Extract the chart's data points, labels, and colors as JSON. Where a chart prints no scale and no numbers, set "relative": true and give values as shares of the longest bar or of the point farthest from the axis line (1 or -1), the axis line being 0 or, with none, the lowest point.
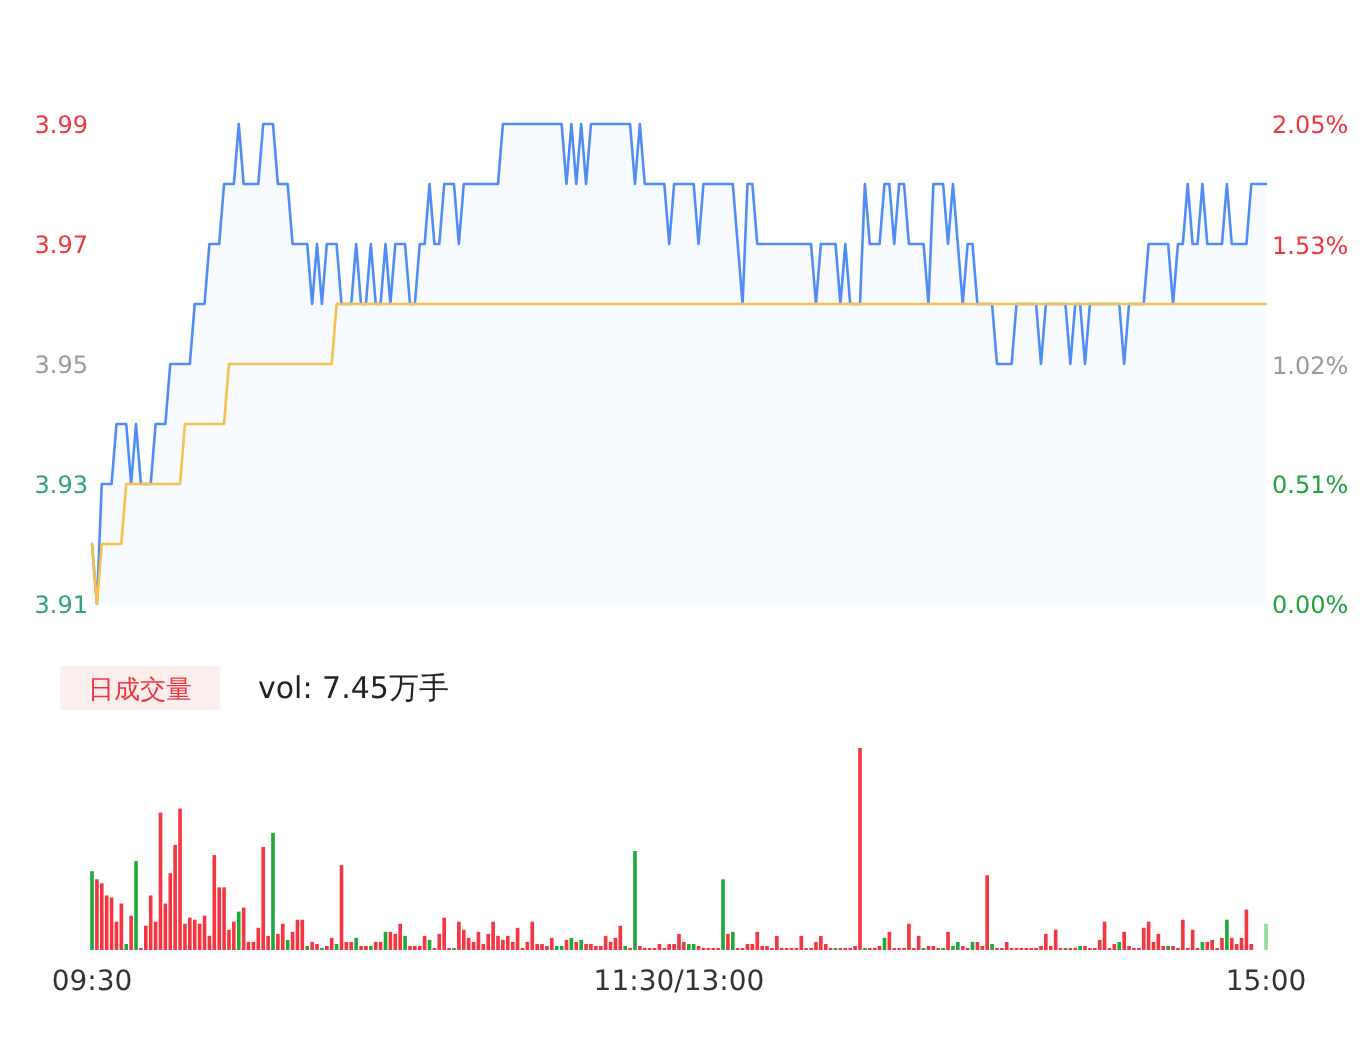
{
  "chart_data": [
    {
      "type": "area",
      "ylim": [
        3.91,
        3.99
      ],
      "yticks": [
        3.91,
        3.93,
        3.95,
        3.97,
        3.99
      ],
      "y2lim": [
        0,
        2.05
      ],
      "y2ticks": [
        {
          "value": 0,
          "label": "0.00%"
        },
        {
          "value": 0.51,
          "label": "0.51%"
        },
        {
          "value": 1.02,
          "label": "1.02%"
        },
        {
          "value": 1.53,
          "label": "1.53%"
        },
        {
          "value": 2.05,
          "label": "2.05%"
        }
      ],
      "tick_labels": "y",
      "categories": [
        null,
        null,
        null,
        null,
        null,
        null,
        null,
        null,
        null,
        null,
        null,
        null,
        null,
        null,
        null,
        null,
        null,
        null,
        null,
        null,
        null,
        null,
        null,
        null,
        null,
        null,
        null,
        null,
        null,
        null,
        null,
        null,
        null,
        null,
        null,
        null,
        null,
        null,
        null,
        null,
        null,
        null,
        null,
        null,
        null,
        null,
        null,
        null,
        null,
        null,
        null,
        null,
        null,
        null,
        null,
        null,
        null,
        null,
        null,
        null,
        null,
        null,
        null,
        null,
        null,
        null,
        null,
        null,
        null,
        null,
        null,
        null,
        null,
        null,
        null,
        null,
        null,
        null,
        null,
        null,
        null,
        null,
        null,
        null,
        null,
        null,
        null,
        null,
        null,
        null,
        null,
        null,
        null,
        null,
        null,
        null,
        null,
        null,
        null,
        null,
        null,
        null,
        null,
        null,
        null,
        null,
        null,
        null,
        null,
        null,
        null,
        null,
        null,
        null,
        null,
        null,
        null,
        null,
        null,
        null,
        null,
        null,
        null,
        null,
        null,
        null,
        null,
        null,
        null,
        null,
        null,
        null,
        null,
        null,
        null,
        null,
        null,
        null,
        null,
        null,
        null,
        null,
        null,
        null,
        null,
        null,
        null,
        null,
        null,
        null,
        null,
        null,
        null,
        null,
        null,
        null,
        null,
        null,
        null,
        null,
        null,
        null,
        null,
        null,
        null,
        null,
        null,
        null,
        null,
        null,
        null,
        null,
        null,
        null,
        null,
        null,
        null,
        null,
        null,
        null,
        null,
        null,
        null,
        null,
        null,
        null,
        null,
        null,
        null,
        null,
        null,
        null,
        null,
        null,
        null,
        null,
        null,
        null,
        null,
        null,
        null,
        null,
        null,
        null,
        null,
        null,
        null,
        null,
        null,
        null,
        null,
        null,
        null,
        null,
        null,
        null,
        null,
        null,
        null,
        null,
        null,
        null,
        null,
        null,
        null,
        null,
        null,
        null,
        null,
        null,
        null,
        null,
        null,
        null,
        null,
        null,
        null,
        null,
        null,
        null,
        null
      ],
      "series": [
        {
          "color": "#4f8cf7",
          "values": [
            3.92,
            3.91,
            3.93,
            3.93,
            3.93,
            3.94,
            3.94,
            3.94,
            3.93,
            3.94,
            3.93,
            3.93,
            3.93,
            3.94,
            3.94,
            3.94,
            3.95,
            3.95,
            3.95,
            3.95,
            3.95,
            3.96,
            3.96,
            3.96,
            3.97,
            3.97,
            3.97,
            3.98,
            3.98,
            3.98,
            3.99,
            3.98,
            3.98,
            3.98,
            3.98,
            3.99,
            3.99,
            3.99,
            3.98,
            3.98,
            3.98,
            3.97,
            3.97,
            3.97,
            3.97,
            3.96,
            3.97,
            3.96,
            3.97,
            3.97,
            3.97,
            3.96,
            3.96,
            3.96,
            3.97,
            3.96,
            3.96,
            3.97,
            3.96,
            3.96,
            3.97,
            3.96,
            3.97,
            3.97,
            3.97,
            3.96,
            3.96,
            3.97,
            3.97,
            3.98,
            3.97,
            3.97,
            3.98,
            3.98,
            3.98,
            3.97,
            3.98,
            3.98,
            3.98,
            3.98,
            3.98,
            3.98,
            3.98,
            3.98,
            3.99,
            3.99,
            3.99,
            3.99,
            3.99,
            3.99,
            3.99,
            3.99,
            3.99,
            3.99,
            3.99,
            3.99,
            3.99,
            3.98,
            3.99,
            3.98,
            3.99,
            3.98,
            3.99,
            3.99,
            3.99,
            3.99,
            3.99,
            3.99,
            3.99,
            3.99,
            3.99,
            3.98,
            3.99,
            3.98,
            3.98,
            3.98,
            3.98,
            3.98,
            3.97,
            3.98,
            3.98,
            3.98,
            3.98,
            3.98,
            3.97,
            3.98,
            3.98,
            3.98,
            3.98,
            3.98,
            3.98,
            3.98,
            3.97,
            3.96,
            3.98,
            3.98,
            3.97,
            3.97,
            3.97,
            3.97,
            3.97,
            3.97,
            3.97,
            3.97,
            3.97,
            3.97,
            3.97,
            3.97,
            3.96,
            3.97,
            3.97,
            3.97,
            3.97,
            3.96,
            3.97,
            3.96,
            3.96,
            3.96,
            3.98,
            3.97,
            3.97,
            3.97,
            3.98,
            3.98,
            3.97,
            3.98,
            3.98,
            3.97,
            3.97,
            3.97,
            3.97,
            3.96,
            3.98,
            3.98,
            3.98,
            3.97,
            3.98,
            3.97,
            3.96,
            3.97,
            3.97,
            3.96,
            3.96,
            3.96,
            3.96,
            3.95,
            3.95,
            3.95,
            3.95,
            3.96,
            3.96,
            3.96,
            3.96,
            3.96,
            3.95,
            3.96,
            3.96,
            3.96,
            3.96,
            3.96,
            3.95,
            3.96,
            3.96,
            3.95,
            3.96,
            3.96,
            3.96,
            3.96,
            3.96,
            3.96,
            3.96,
            3.95,
            3.96,
            3.96,
            3.96,
            3.96,
            3.97,
            3.97,
            3.97,
            3.97,
            3.97,
            3.96,
            3.97,
            3.97,
            3.98,
            3.97,
            3.97,
            3.98,
            3.97,
            3.97,
            3.97,
            3.97,
            3.98,
            3.97,
            3.97,
            3.97,
            3.97,
            3.98,
            3.98,
            3.98,
            3.98
          ]
        },
        {
          "type": "line",
          "color": "#f7c14b",
          "values": [
            3.92,
            3.91,
            3.92,
            3.92,
            3.92,
            3.92,
            3.92,
            3.93,
            3.93,
            3.93,
            3.93,
            3.93,
            3.93,
            3.93,
            3.93,
            3.93,
            3.93,
            3.93,
            3.93,
            3.94,
            3.94,
            3.94,
            3.94,
            3.94,
            3.94,
            3.94,
            3.94,
            3.94,
            3.95,
            3.95,
            3.95,
            3.95,
            3.95,
            3.95,
            3.95,
            3.95,
            3.95,
            3.95,
            3.95,
            3.95,
            3.95,
            3.95,
            3.95,
            3.95,
            3.95,
            3.95,
            3.95,
            3.95,
            3.95,
            3.95,
            3.96,
            3.96,
            3.96,
            3.96,
            3.96,
            3.96,
            3.96,
            3.96,
            3.96,
            3.96,
            3.96,
            3.96,
            3.96,
            3.96,
            3.96,
            3.96,
            3.96,
            3.96,
            3.96,
            3.96,
            3.96,
            3.96,
            3.96,
            3.96,
            3.96,
            3.96,
            3.96,
            3.96,
            3.96,
            3.96,
            3.96,
            3.96,
            3.96,
            3.96,
            3.96,
            3.96,
            3.96,
            3.96,
            3.96,
            3.96,
            3.96,
            3.96,
            3.96,
            3.96,
            3.96,
            3.96,
            3.96,
            3.96,
            3.96,
            3.96,
            3.96,
            3.96,
            3.96,
            3.96,
            3.96,
            3.96,
            3.96,
            3.96,
            3.96,
            3.96,
            3.96,
            3.96,
            3.96,
            3.96,
            3.96,
            3.96,
            3.96,
            3.96,
            3.96,
            3.96,
            3.96,
            3.96,
            3.96,
            3.96,
            3.96,
            3.96,
            3.96,
            3.96,
            3.96,
            3.96,
            3.96,
            3.96,
            3.96,
            3.96,
            3.96,
            3.96,
            3.96,
            3.96,
            3.96,
            3.96,
            3.96,
            3.96,
            3.96,
            3.96,
            3.96,
            3.96,
            3.96,
            3.96,
            3.96,
            3.96,
            3.96,
            3.96,
            3.96,
            3.96,
            3.96,
            3.96,
            3.96,
            3.96,
            3.96,
            3.96,
            3.96,
            3.96,
            3.96,
            3.96,
            3.96,
            3.96,
            3.96,
            3.96,
            3.96,
            3.96,
            3.96,
            3.96,
            3.96,
            3.96,
            3.96,
            3.96,
            3.96,
            3.96,
            3.96,
            3.96,
            3.96,
            3.96,
            3.96,
            3.96,
            3.96,
            3.96,
            3.96,
            3.96,
            3.96,
            3.96,
            3.96,
            3.96,
            3.96,
            3.96,
            3.96,
            3.96,
            3.96,
            3.96,
            3.96,
            3.96,
            3.96,
            3.96,
            3.96,
            3.96,
            3.96,
            3.96,
            3.96,
            3.96,
            3.96,
            3.96,
            3.96,
            3.96,
            3.96,
            3.96,
            3.96,
            3.96,
            3.96,
            3.96,
            3.96,
            3.96,
            3.96,
            3.96,
            3.96,
            3.96,
            3.96,
            3.96,
            3.96,
            3.96,
            3.96,
            3.96,
            3.96,
            3.96,
            3.96,
            3.96,
            3.96,
            3.96,
            3.96,
            3.96,
            3.96,
            3.96,
            3.96
          ]
        }
      ]
    },
    {
      "type": "bar",
      "title": "日成交量",
      "subtitle": "vol: 7.45万手",
      "relative": true,
      "tick_labels": "x",
      "categories": [
        "09:30",
        null,
        null,
        null,
        null,
        null,
        null,
        null,
        null,
        null,
        null,
        null,
        null,
        null,
        null,
        null,
        null,
        null,
        null,
        null,
        null,
        null,
        null,
        null,
        null,
        null,
        null,
        null,
        null,
        null,
        null,
        null,
        null,
        null,
        null,
        null,
        null,
        null,
        null,
        null,
        null,
        null,
        null,
        null,
        null,
        null,
        null,
        null,
        null,
        null,
        null,
        null,
        null,
        null,
        null,
        null,
        null,
        null,
        null,
        null,
        null,
        null,
        null,
        null,
        null,
        null,
        null,
        null,
        null,
        null,
        null,
        null,
        null,
        null,
        null,
        null,
        null,
        null,
        null,
        null,
        null,
        null,
        null,
        null,
        null,
        null,
        null,
        null,
        null,
        null,
        null,
        null,
        null,
        null,
        null,
        null,
        null,
        null,
        null,
        null,
        null,
        null,
        null,
        null,
        null,
        null,
        null,
        null,
        null,
        null,
        null,
        null,
        null,
        null,
        null,
        null,
        null,
        null,
        null,
        null,
        "11:30/13:00",
        null,
        null,
        null,
        null,
        null,
        null,
        null,
        null,
        null,
        null,
        null,
        null,
        null,
        null,
        null,
        null,
        null,
        null,
        null,
        null,
        null,
        null,
        null,
        null,
        null,
        null,
        null,
        null,
        null,
        null,
        null,
        null,
        null,
        null,
        null,
        null,
        null,
        null,
        null,
        null,
        null,
        null,
        null,
        null,
        null,
        null,
        null,
        null,
        null,
        null,
        null,
        null,
        null,
        null,
        null,
        null,
        null,
        null,
        null,
        null,
        null,
        null,
        null,
        null,
        null,
        null,
        null,
        null,
        null,
        null,
        null,
        null,
        null,
        null,
        null,
        null,
        null,
        null,
        null,
        null,
        null,
        null,
        null,
        null,
        null,
        null,
        null,
        null,
        null,
        null,
        null,
        null,
        null,
        null,
        null,
        null,
        null,
        null,
        null,
        null,
        null,
        null,
        null,
        null,
        null,
        null,
        null,
        null,
        null,
        null,
        null,
        null,
        null,
        null,
        null,
        null,
        null,
        null,
        null,
        "15:00"
      ],
      "values": [
        0.39,
        0.35,
        0.33,
        0.27,
        0.26,
        0.14,
        0.23,
        0.03,
        0.17,
        0.44,
        0.01,
        0.12,
        0.27,
        0.14,
        0.68,
        0.23,
        0.38,
        0.52,
        0.7,
        0.13,
        0.16,
        0.15,
        0.13,
        0.17,
        0.07,
        0.47,
        0.31,
        0.31,
        0.1,
        0.14,
        0.19,
        0.21,
        0.04,
        0.04,
        0.11,
        0.51,
        0.07,
        0.58,
        0.08,
        0.13,
        0.05,
        0.09,
        0.15,
        0.15,
        0.02,
        0.04,
        0.03,
        0.01,
        0.02,
        0.06,
        0.03,
        0.42,
        0.04,
        0.04,
        0.06,
        0.02,
        0.02,
        0.02,
        0.04,
        0.04,
        0.09,
        0.09,
        0.08,
        0.13,
        0.07,
        0.02,
        0.02,
        0.02,
        0.07,
        0.05,
        0.01,
        0.08,
        0.16,
        0.01,
        0.01,
        0.14,
        0.1,
        0.06,
        0.04,
        0.09,
        0.03,
        0.08,
        0.14,
        0.07,
        0.05,
        0.07,
        0.04,
        0.11,
        0.01,
        0.04,
        0.14,
        0.03,
        0.03,
        0.02,
        0.06,
        0.02,
        0.02,
        0.05,
        0.06,
        0.04,
        0.05,
        0.03,
        0.03,
        0.02,
        0.02,
        0.07,
        0.04,
        0.06,
        0.12,
        0.02,
        0.01,
        0.49,
        0.02,
        0.01,
        0.01,
        0.01,
        0.03,
        0.01,
        0.03,
        0.03,
        0.08,
        0.04,
        0.03,
        0.03,
        0.02,
        0.01,
        0.01,
        0.01,
        0.01,
        0.35,
        0.08,
        0.09,
        0.01,
        0.01,
        0.03,
        0.03,
        0.09,
        0.02,
        0.02,
        0.01,
        0.07,
        0.01,
        0.01,
        0.01,
        0.01,
        0.07,
        0.01,
        0.01,
        0.04,
        0.07,
        0.03,
        0.01,
        0.01,
        0.01,
        0.01,
        0.01,
        0.02,
        1,
        0.01,
        0.01,
        0.01,
        0.02,
        0.06,
        0.09,
        0.01,
        0.01,
        0.01,
        0.13,
        0.01,
        0.07,
        0.01,
        0.02,
        0.02,
        0.01,
        0.01,
        0.09,
        0.02,
        0.04,
        0.02,
        0.01,
        0.04,
        0.04,
        0.02,
        0.37,
        0.03,
        0.01,
        0.01,
        0.04,
        0.01,
        0.01,
        0.01,
        0.01,
        0.01,
        0.01,
        0.02,
        0.08,
        0.02,
        0.1,
        0.01,
        0.01,
        0.01,
        0.01,
        0.02,
        0.02,
        0.01,
        0.01,
        0.05,
        0.14,
        0.01,
        0.03,
        0.04,
        0.09,
        0.02,
        0.01,
        0.01,
        0.11,
        0.14,
        0.04,
        0.08,
        0.02,
        0.02,
        0.02,
        0.01,
        0.15,
        0.01,
        0.1,
        0.01,
        0.04,
        0.04,
        0.05,
        0.01,
        0.06,
        0.15,
        0.06,
        0.03,
        0.06,
        0.2,
        0.03,
        0,
        0,
        0.13
      ],
      "colors": [
        "#1fa83c",
        "#f5353f",
        "#f5353f",
        "#f5353f",
        "#f5353f",
        "#f5353f",
        "#f5353f",
        "#1fa83c",
        "#f5353f",
        "#1fa83c",
        "#f5353f",
        "#f5353f",
        "#f5353f",
        "#f5353f",
        "#f5353f",
        "#f5353f",
        "#f5353f",
        "#f5353f",
        "#f5353f",
        "#f5353f",
        "#f5353f",
        "#f5353f",
        "#f5353f",
        "#f5353f",
        "#f5353f",
        "#f5353f",
        "#f5353f",
        "#f5353f",
        "#f5353f",
        "#f5353f",
        "#1fa83c",
        "#f5353f",
        "#f5353f",
        "#f5353f",
        "#f5353f",
        "#f5353f",
        "#f5353f",
        "#1fa83c",
        "#f5353f",
        "#f5353f",
        "#1fa83c",
        "#f5353f",
        "#f5353f",
        "#f5353f",
        "#1fa83c",
        "#f5353f",
        "#f5353f",
        "#1fa83c",
        "#f5353f",
        "#f5353f",
        "#1fa83c",
        "#f5353f",
        "#f5353f",
        "#f5353f",
        "#1fa83c",
        "#f5353f",
        "#f5353f",
        "#1fa83c",
        "#f5353f",
        "#f5353f",
        "#1fa83c",
        "#f5353f",
        "#f5353f",
        "#f5353f",
        "#1fa83c",
        "#f5353f",
        "#f5353f",
        "#f5353f",
        "#f5353f",
        "#1fa83c",
        "#f5353f",
        "#f5353f",
        "#f5353f",
        "#f5353f",
        "#1fa83c",
        "#f5353f",
        "#f5353f",
        "#f5353f",
        "#f5353f",
        "#f5353f",
        "#f5353f",
        "#f5353f",
        "#f5353f",
        "#f5353f",
        "#f5353f",
        "#f5353f",
        "#f5353f",
        "#f5353f",
        "#f5353f",
        "#f5353f",
        "#f5353f",
        "#f5353f",
        "#f5353f",
        "#f5353f",
        "#f5353f",
        "#1fa83c",
        "#1fa83c",
        "#f5353f",
        "#1fa83c",
        "#f5353f",
        "#1fa83c",
        "#f5353f",
        "#f5353f",
        "#f5353f",
        "#f5353f",
        "#f5353f",
        "#f5353f",
        "#f5353f",
        "#f5353f",
        "#1fa83c",
        "#f5353f",
        "#1fa83c",
        "#f5353f",
        "#f5353f",
        "#f5353f",
        "#f5353f",
        "#f5353f",
        "#f5353f",
        "#f5353f",
        "#f5353f",
        "#f5353f",
        "#f5353f",
        "#1fa83c",
        "#1fa83c",
        "#f5353f",
        "#f5353f",
        "#f5353f",
        "#f5353f",
        "#f5353f",
        "#1fa83c",
        "#f5353f",
        "#1fa83c",
        "#f5353f",
        "#f5353f",
        "#f5353f",
        "#f5353f",
        "#f5353f",
        "#f5353f",
        "#f5353f",
        "#f5353f",
        "#f5353f",
        "#f5353f",
        "#f5353f",
        "#f5353f",
        "#f5353f",
        "#f5353f",
        "#f5353f",
        "#f5353f",
        "#f5353f",
        "#f5353f",
        "#f5353f",
        "#f5353f",
        "#1fa83c",
        "#f5353f",
        "#f5353f",
        "#f5353f",
        "#f5353f",
        "#f5353f",
        "#1fa83c",
        "#f5353f",
        "#f5353f",
        "#f5353f",
        "#1fa83c",
        "#f5353f",
        "#f5353f",
        "#f5353f",
        "#f5353f",
        "#f5353f",
        "#f5353f",
        "#f5353f",
        "#1fa83c",
        "#f5353f",
        "#f5353f",
        "#f5353f",
        "#1fa83c",
        "#f5353f",
        "#1fa83c",
        "#1fa83c",
        "#f5353f",
        "#f5353f",
        "#1fa83c",
        "#f5353f",
        "#f5353f",
        "#f5353f",
        "#1fa83c",
        "#f5353f",
        "#f5353f",
        "#f5353f",
        "#f5353f",
        "#f5353f",
        "#f5353f",
        "#f5353f",
        "#f5353f",
        "#f5353f",
        "#f5353f",
        "#f5353f",
        "#f5353f",
        "#f5353f",
        "#f5353f",
        "#1fa83c",
        "#f5353f",
        "#f5353f",
        "#1fa83c",
        "#f5353f",
        "#f5353f",
        "#f5353f",
        "#f5353f",
        "#f5353f",
        "#f5353f",
        "#f5353f",
        "#1fa83c",
        "#f5353f",
        "#f5353f",
        "#f5353f",
        "#f5353f",
        "#f5353f",
        "#f5353f",
        "#f5353f",
        "#f5353f",
        "#f5353f",
        "#1fa83c",
        "#f5353f",
        "#f5353f",
        "#f5353f",
        "#f5353f",
        "#f5353f",
        "#f5353f",
        "#1fa83c",
        "#f5353f",
        "#f5353f",
        "#f5353f",
        "#f5353f",
        "#1fa83c",
        "#f5353f",
        "#f5353f",
        "#f5353f",
        "#f5353f",
        "#f5353f",
        "#f5353f",
        "#f5353f",
        "#8fdc9c"
      ]
    }
  ]
}
